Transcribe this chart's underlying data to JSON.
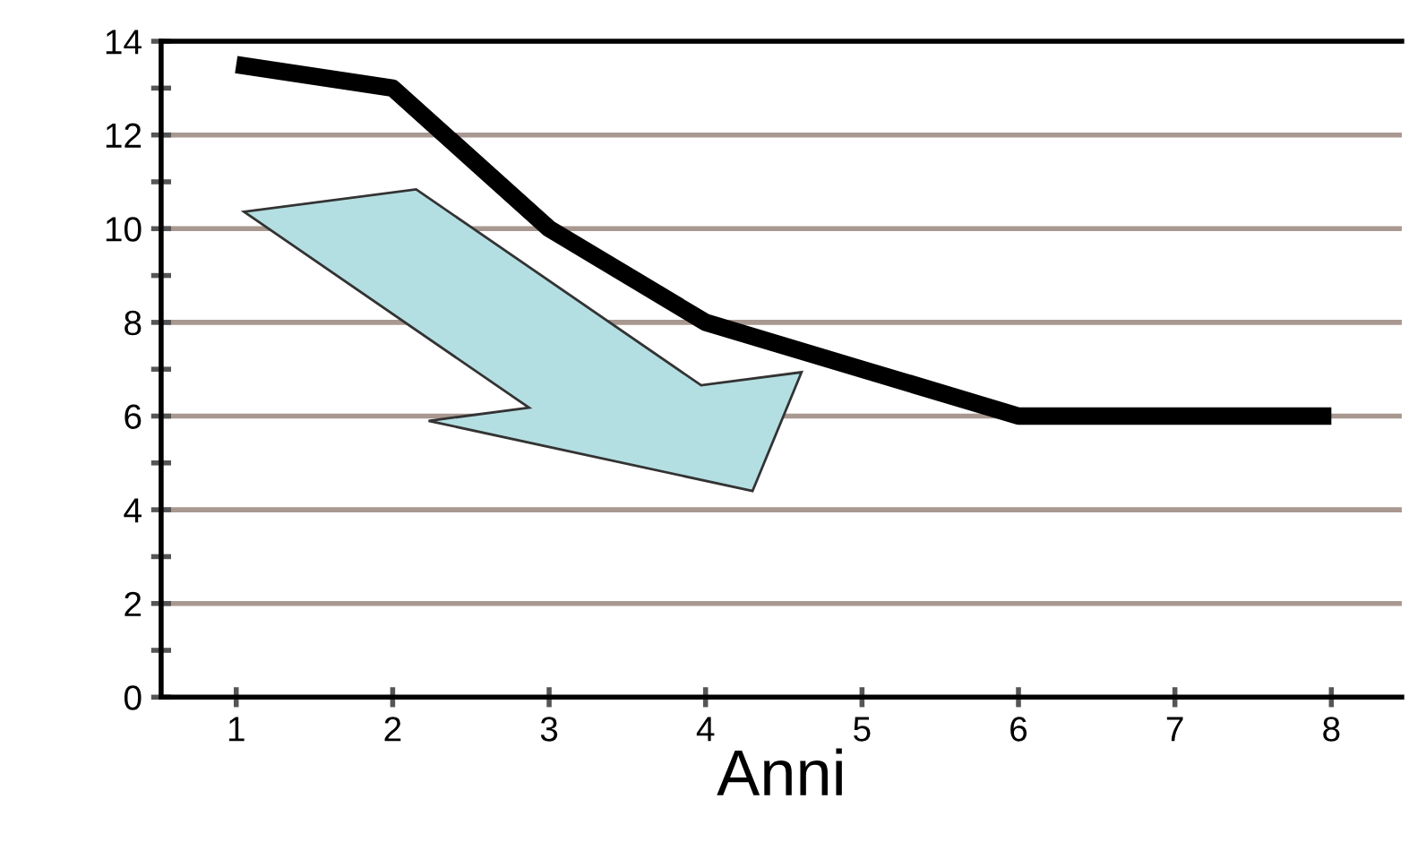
{
  "chart_data": {
    "type": "line",
    "xlabel": "Anni",
    "x": [
      1,
      2,
      3,
      4,
      5,
      6,
      7,
      8
    ],
    "series": [
      {
        "color": "#000000",
        "values": [
          13.5,
          13,
          10,
          8,
          7,
          6,
          6,
          6
        ]
      }
    ],
    "xlim": [
      0.52,
      8.45
    ],
    "ylim": [
      0,
      14
    ],
    "xticks": [
      1,
      2,
      3,
      4,
      5,
      6,
      7,
      8
    ],
    "yticks": [
      0,
      {
        "value": 1,
        "label": null
      },
      2,
      {
        "value": 3,
        "label": null
      },
      4,
      {
        "value": 5,
        "label": null
      },
      6,
      {
        "value": 7,
        "label": null
      },
      8,
      {
        "value": 9,
        "label": null
      },
      10,
      {
        "value": 11,
        "label": null
      },
      12,
      {
        "value": 13,
        "label": null
      },
      14
    ],
    "grid": "y",
    "marker": "none",
    "line_style": "solid"
  }
}
